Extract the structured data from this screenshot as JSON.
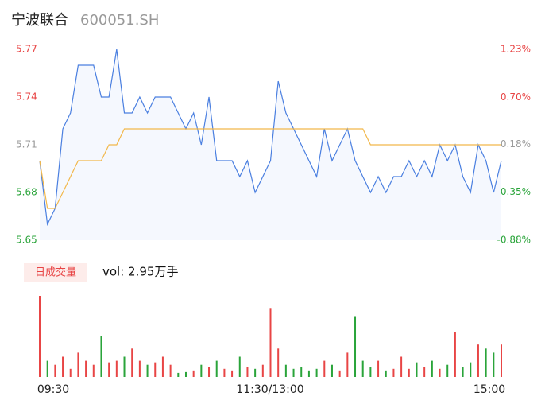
{
  "header": {
    "title": "宁波联合",
    "code": "600051.SH"
  },
  "chart_data": {
    "type": "line",
    "series": [
      {
        "name": "price",
        "color": "#4a7fe0",
        "values": [
          5.7,
          5.66,
          5.67,
          5.72,
          5.73,
          5.76,
          5.76,
          5.76,
          5.74,
          5.74,
          5.77,
          5.73,
          5.73,
          5.74,
          5.73,
          5.74,
          5.74,
          5.74,
          5.73,
          5.72,
          5.73,
          5.71,
          5.74,
          5.7,
          5.7,
          5.7,
          5.69,
          5.7,
          5.68,
          5.69,
          5.7,
          5.75,
          5.73,
          5.72,
          5.71,
          5.7,
          5.69,
          5.72,
          5.7,
          5.71,
          5.72,
          5.7,
          5.69,
          5.68,
          5.69,
          5.68,
          5.69,
          5.69,
          5.7,
          5.69,
          5.7,
          5.69,
          5.71,
          5.7,
          5.71,
          5.69,
          5.68,
          5.71,
          5.7,
          5.68,
          5.7
        ]
      },
      {
        "name": "average",
        "color": "#f2b84b",
        "values": [
          5.7,
          5.67,
          5.67,
          5.68,
          5.69,
          5.7,
          5.7,
          5.7,
          5.7,
          5.71,
          5.71,
          5.72,
          5.72,
          5.72,
          5.72,
          5.72,
          5.72,
          5.72,
          5.72,
          5.72,
          5.72,
          5.72,
          5.72,
          5.72,
          5.72,
          5.72,
          5.72,
          5.72,
          5.72,
          5.72,
          5.72,
          5.72,
          5.72,
          5.72,
          5.72,
          5.72,
          5.72,
          5.72,
          5.72,
          5.72,
          5.72,
          5.72,
          5.72,
          5.71,
          5.71,
          5.71,
          5.71,
          5.71,
          5.71,
          5.71,
          5.71,
          5.71,
          5.71,
          5.71,
          5.71,
          5.71,
          5.71,
          5.71,
          5.71,
          5.71,
          5.71
        ]
      }
    ],
    "ylim": [
      5.65,
      5.77
    ],
    "yticks": [
      5.77,
      5.74,
      5.71,
      5.68,
      5.65
    ],
    "y2lim": [
      -0.88,
      1.23
    ],
    "y2ticks": [
      {
        "value": 1.23,
        "label": "1.23%"
      },
      {
        "value": 0.7,
        "label": "0.70%"
      },
      {
        "value": 0.18,
        "label": "0.18%"
      },
      {
        "value": -0.35,
        "label": "-0.35%"
      },
      {
        "value": -0.88,
        "label": "-0.88%"
      }
    ],
    "xlabels": [
      "09:30",
      "11:30/13:00",
      "15:00"
    ],
    "volume": {
      "button": "日成交量",
      "label": "vol: 2.95万手",
      "values": [
        100,
        20,
        15,
        25,
        10,
        30,
        20,
        15,
        50,
        18,
        20,
        25,
        35,
        20,
        15,
        18,
        25,
        15,
        5,
        6,
        8,
        15,
        12,
        20,
        10,
        8,
        25,
        12,
        10,
        15,
        85,
        35,
        15,
        10,
        12,
        8,
        10,
        20,
        15,
        8,
        30,
        75,
        20,
        12,
        20,
        8,
        10,
        25,
        10,
        18,
        12,
        20,
        10,
        15,
        55,
        12,
        18,
        40,
        35,
        30,
        40
      ],
      "ylim": [
        0,
        100
      ],
      "up_color": "#e84545",
      "down_color": "#2aa43a"
    }
  }
}
